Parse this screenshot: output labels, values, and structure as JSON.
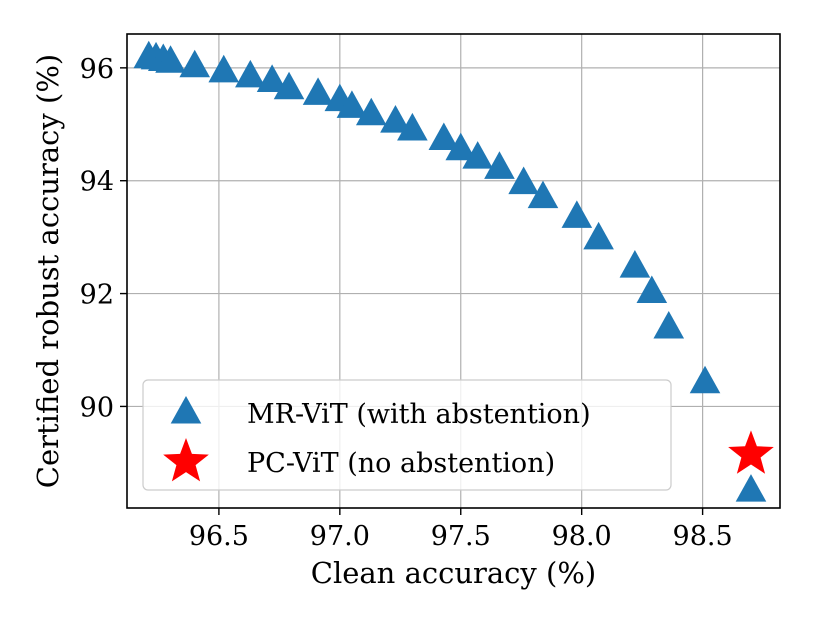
{
  "chart_data": {
    "type": "scatter",
    "title": "",
    "xlabel": "Clean accuracy (%)",
    "ylabel": "Certified robust accuracy (%)",
    "xlim": [
      96.12,
      98.82
    ],
    "ylim": [
      88.2,
      96.6
    ],
    "xticks": [
      {
        "value": 96.5,
        "label": "96.5"
      },
      {
        "value": 97.0,
        "label": "97.0"
      },
      {
        "value": 97.5,
        "label": "97.5"
      },
      {
        "value": 98.0,
        "label": "98.0"
      },
      {
        "value": 98.5,
        "label": "98.5"
      }
    ],
    "yticks": [
      {
        "value": 90,
        "label": "90"
      },
      {
        "value": 92,
        "label": "92"
      },
      {
        "value": 94,
        "label": "94"
      },
      {
        "value": 96,
        "label": "96"
      }
    ],
    "grid": true,
    "legend_position": "lower-left",
    "series": [
      {
        "name": "MR-ViT (with abstention)",
        "marker": "triangle",
        "color": "#1f77b4",
        "points": [
          {
            "x": 96.21,
            "y": 96.18
          },
          {
            "x": 96.24,
            "y": 96.16
          },
          {
            "x": 96.27,
            "y": 96.13
          },
          {
            "x": 96.3,
            "y": 96.1
          },
          {
            "x": 96.4,
            "y": 96.02
          },
          {
            "x": 96.52,
            "y": 95.93
          },
          {
            "x": 96.63,
            "y": 95.84
          },
          {
            "x": 96.72,
            "y": 95.76
          },
          {
            "x": 96.79,
            "y": 95.63
          },
          {
            "x": 96.91,
            "y": 95.53
          },
          {
            "x": 97.0,
            "y": 95.42
          },
          {
            "x": 97.05,
            "y": 95.3
          },
          {
            "x": 97.13,
            "y": 95.17
          },
          {
            "x": 97.23,
            "y": 95.04
          },
          {
            "x": 97.3,
            "y": 94.9
          },
          {
            "x": 97.43,
            "y": 94.73
          },
          {
            "x": 97.5,
            "y": 94.55
          },
          {
            "x": 97.57,
            "y": 94.4
          },
          {
            "x": 97.66,
            "y": 94.22
          },
          {
            "x": 97.76,
            "y": 93.95
          },
          {
            "x": 97.84,
            "y": 93.7
          },
          {
            "x": 97.98,
            "y": 93.35
          },
          {
            "x": 98.07,
            "y": 92.97
          },
          {
            "x": 98.22,
            "y": 92.47
          },
          {
            "x": 98.29,
            "y": 92.02
          },
          {
            "x": 98.36,
            "y": 91.39
          },
          {
            "x": 98.51,
            "y": 90.42
          },
          {
            "x": 98.7,
            "y": 88.5
          }
        ]
      },
      {
        "name": "PC-ViT (no abstention)",
        "marker": "star",
        "color": "#ff0000",
        "points": [
          {
            "x": 98.7,
            "y": 89.15
          }
        ]
      }
    ]
  }
}
